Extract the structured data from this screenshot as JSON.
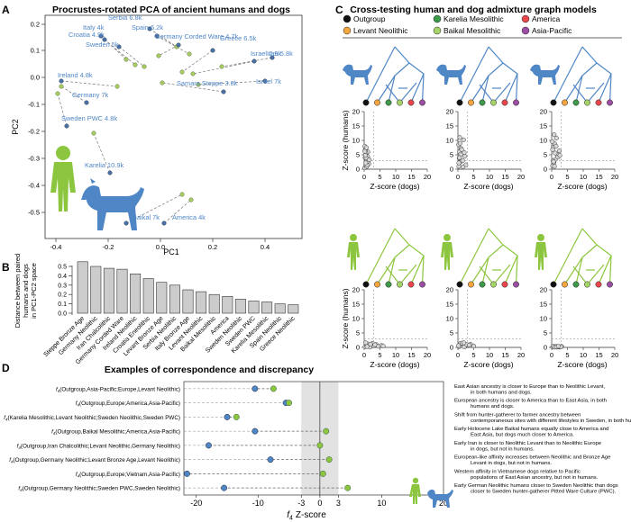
{
  "panel_labels": {
    "a": "A",
    "b": "B",
    "c": "C",
    "d": "D"
  },
  "colors": {
    "dog_blue": "#4f86c6",
    "human_green": "#8cc63e",
    "outgroup": "#111111",
    "levant": "#f4a641",
    "karelia": "#3c9a49",
    "baikal": "#a6d46a",
    "america": "#e8474c",
    "asia_pacific": "#9b4ea3"
  },
  "panel_a": {
    "title": "Procrustes-rotated PCA of ancient humans and dogs",
    "xlabel": "PC1",
    "ylabel": "PC2",
    "xticks": [
      "-0.4",
      "-0.2",
      "0.0",
      "0.2",
      "0.4"
    ],
    "yticks": [
      "0.2",
      "0.1",
      "0.0",
      "-0.1",
      "-0.2",
      "-0.3",
      "-0.4",
      "-0.5"
    ],
    "labels": [
      {
        "text": "Serbia 6.8k"
      },
      {
        "text": "Italy 4k"
      },
      {
        "text": "Spain 6.2k"
      },
      {
        "text": "Croatia 4.9k"
      },
      {
        "text": "Germany Corded Ware 4.7k"
      },
      {
        "text": "Sweden 5k"
      },
      {
        "text": "Greece 6.5k"
      },
      {
        "text": "Israel 2.9k"
      },
      {
        "text": "Iran 5.8k"
      },
      {
        "text": "Israel 7k"
      },
      {
        "text": "Ireland 4.8k"
      },
      {
        "text": "Samara Steppe 3.8k"
      },
      {
        "text": "Germany 7k"
      },
      {
        "text": "Sweden PWC 4.8k"
      },
      {
        "text": "Karelia 10.9k"
      },
      {
        "text": "Baikal 7k"
      },
      {
        "text": "America 4k"
      }
    ]
  },
  "chart_data": [
    {
      "type": "bar",
      "panel": "B",
      "ylabel": "Distance between paired humans and dogs in PC1-PC2 space",
      "ylim": [
        0,
        0.5
      ],
      "yticks": [
        "0.0",
        "0.1",
        "0.2",
        "0.3",
        "0.4",
        "0.5"
      ],
      "categories": [
        "Steppe Bronze Age",
        "Germany Neolithic",
        "Iran Chalcolithic",
        "Germany Corded Ware",
        "Ireland Neolithic",
        "Croatia Eneolithic",
        "Levant Bronze Age",
        "Serbia Neolithic",
        "Italy Bronze Age",
        "Levant Neolithic",
        "Baikal Mesolithic",
        "America",
        "Sweden Neolithic",
        "Sweden PWC",
        "Karelia Mesolithic",
        "Spain Neolithic",
        "Greece Neolithic"
      ],
      "values": [
        0.55,
        0.5,
        0.48,
        0.47,
        0.42,
        0.37,
        0.33,
        0.3,
        0.25,
        0.23,
        0.2,
        0.18,
        0.15,
        0.13,
        0.12,
        0.1,
        0.09
      ]
    },
    {
      "type": "scatter",
      "panel": "C",
      "xlabel": "Z-score (dogs)",
      "ylabel": "Z-score (humans)",
      "xlim": [
        0,
        20
      ],
      "ylim": [
        0,
        20
      ],
      "xticks": [
        "0",
        "5",
        "10",
        "15",
        "20"
      ],
      "yticks": [
        "0",
        "5",
        "10",
        "15",
        "20"
      ],
      "threshold": 3,
      "subplots": [
        {
          "tree": "dog",
          "x": [
            0.2,
            0.5,
            0.8,
            1.0,
            0.3,
            0.6,
            1.2,
            0.4,
            0.9,
            1.5,
            0.2,
            0.7,
            1.1,
            0.5,
            0.3,
            0.8,
            1.3,
            0.6,
            0.4,
            0.9,
            1.6,
            0.2,
            0.7,
            0.5
          ],
          "y": [
            0.5,
            1.2,
            2.0,
            3.1,
            4.0,
            5.2,
            6.0,
            7.1,
            2.5,
            1.8,
            8.0,
            3.5,
            4.4,
            5.8,
            6.6,
            0.9,
            2.8,
            3.9,
            4.8,
            1.4,
            3.3,
            6.2,
            7.5,
            2.2
          ]
        },
        {
          "tree": "dog",
          "x": [
            0.3,
            0.8,
            1.5,
            2.2,
            0.5,
            1.0,
            0.2,
            1.8,
            0.6,
            2.5,
            0.9,
            0.4,
            1.2,
            0.7,
            0.3,
            1.6,
            2.0,
            0.5
          ],
          "y": [
            1.0,
            2.5,
            3.0,
            4.5,
            6.0,
            7.2,
            8.5,
            10.2,
            11.0,
            1.5,
            5.2,
            3.8,
            6.8,
            9.0,
            2.2,
            0.8,
            5.8,
            4.0
          ]
        },
        {
          "tree": "dog",
          "x": [
            0.3,
            0.7,
            1.2,
            1.8,
            2.4,
            0.5,
            1.0,
            0.2,
            1.5,
            0.8,
            2.0,
            0.4,
            1.1,
            0.6,
            2.6,
            0.9,
            0.3,
            1.4
          ],
          "y": [
            1.2,
            2.2,
            3.4,
            5.0,
            6.4,
            7.5,
            8.8,
            9.6,
            10.8,
            12.0,
            4.2,
            3.0,
            5.6,
            2.6,
            4.8,
            1.0,
            6.8,
            8.0
          ]
        },
        {
          "tree": "human",
          "x": [
            0.3,
            0.8,
            1.5,
            2.2,
            3.0,
            3.8,
            4.5,
            5.5,
            1.2,
            2.6,
            0.5,
            1.8,
            3.4,
            6.0,
            0.9,
            2.0
          ],
          "y": [
            0.2,
            0.5,
            0.8,
            0.3,
            0.6,
            1.0,
            0.4,
            0.7,
            1.2,
            1.4,
            1.6,
            0.1,
            0.9,
            0.5,
            0.3,
            1.1
          ]
        },
        {
          "tree": "human",
          "x": [
            0.4,
            1.0,
            1.6,
            2.4,
            3.2,
            4.0,
            5.0,
            0.7,
            1.3,
            2.0,
            2.8,
            3.6,
            0.2,
            1.9
          ],
          "y": [
            0.3,
            0.6,
            0.9,
            0.4,
            0.7,
            1.1,
            0.5,
            1.3,
            1.5,
            0.2,
            1.0,
            0.8,
            0.6,
            1.6
          ]
        },
        {
          "tree": "human",
          "x": [
            0.3,
            0.8,
            1.4,
            2.0,
            2.6,
            3.2,
            0.5,
            1.1,
            1.7,
            2.3,
            2.9,
            0.9,
            1.5,
            2.1
          ],
          "y": [
            0.1,
            0.2,
            0.3,
            0.2,
            0.1,
            0.3,
            0.4,
            0.2,
            0.1,
            0.3,
            0.2,
            0.1,
            0.2,
            0.4
          ]
        }
      ]
    },
    {
      "type": "scatter",
      "panel": "D",
      "xlim": [
        -22,
        20
      ],
      "xticks": [
        "-20",
        "-10",
        "-3",
        "0",
        "3",
        "10",
        "20"
      ],
      "shade": [
        -3,
        3
      ],
      "rows": [
        {
          "human": -7.5,
          "dog": -10.5
        },
        {
          "human": -5.0,
          "dog": -5.5
        },
        {
          "human": -13.5,
          "dog": -15.0
        },
        {
          "human": 1.0,
          "dog": -10.5
        },
        {
          "human": 0.0,
          "dog": -18.0
        },
        {
          "human": 1.5,
          "dog": -8.0
        },
        {
          "human": 0.5,
          "dog": -21.5
        },
        {
          "human": 4.5,
          "dog": -15.5
        }
      ]
    }
  ],
  "panel_c": {
    "title": "Cross-testing human and dog admixture graph models",
    "legend": [
      {
        "label": "Outgroup"
      },
      {
        "label": "Karelia Mesolithic"
      },
      {
        "label": "America"
      },
      {
        "label": "Levant Neolithic"
      },
      {
        "label": "Baikal Mesolithic"
      },
      {
        "label": "Asia-Pacific"
      }
    ]
  },
  "panel_d": {
    "title": "Examples of correspondence and discrepancy",
    "xlabel_f": "f",
    "xlabel_sub": "4",
    "xlabel_rest": "Z-score",
    "rows": [
      {
        "label": "(Outgroup,Asia-Pacific;Europe,Levant Neolithic)",
        "desc": "East Asian ancestry is closer to Europe than to Neolithic Levant, in both humans and dogs."
      },
      {
        "label": "(Outgroup,Europe;America,Asia-Pacific)",
        "desc": "European ancestry is closer to America than to East Asia, in both humans and dogs."
      },
      {
        "label": "(Karelia Mesolithic,Levant Neolithic;Sweden Neolithic,Sweden PWC)",
        "desc": "Shift from hunter-gatherer to farmer ancestry between contemporaneous sites with different lifestyles in Sweden, in both humans and dogs."
      },
      {
        "label": "(Outgroup,Baikal Mesolithic;America,Asia-Pacific)",
        "desc": "Early Holocene Lake Baikal humans equally close to America and East Asia, but dogs much closer to America."
      },
      {
        "label": "(Outgroup,Iran Chalcolithic;Levant Neolithic,Germany Neolithic)",
        "desc": "Early Iran is closer to Neolithic Levant than to Neolithic Europe in dogs, but not in humans."
      },
      {
        "label": "(Outgroup,Germany Neolithic;Levant Bronze Age,Levant Neolithic)",
        "desc": "European-like affinity increases between Neolithic and Bronze Age Levant in dogs, but not in humans."
      },
      {
        "label": "(Outgroup,Europe;Vietnam,Asia-Pacific)",
        "desc": "Western affinity in Vietnamese dogs relative to Pacific populations of East Asian ancestry, but not in humans."
      },
      {
        "label": "(Outgroup,Germany Neolithic;Sweden PWC,Sweden Neolithic)",
        "desc": "Early German Neolithic humans closer to Sweden Neolithic than dogs closer to Sweden hunter-gatherer Pitted Ware Culture (PWC)."
      }
    ]
  }
}
